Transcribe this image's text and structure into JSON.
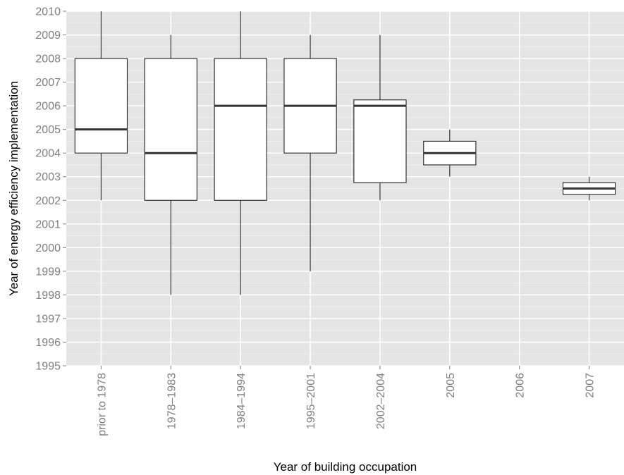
{
  "chart_data": {
    "type": "boxplot",
    "title": "",
    "xlabel": "Year of building occupation",
    "ylabel": "Year of energy efficiency implementation",
    "ylim": [
      1995,
      2010
    ],
    "y_ticks": [
      1995,
      1996,
      1997,
      1998,
      1999,
      2000,
      2001,
      2002,
      2003,
      2004,
      2005,
      2006,
      2007,
      2008,
      2009,
      2010
    ],
    "categories": [
      "prior to 1978",
      "1978–1983",
      "1984–1994",
      "1995–2001",
      "2002–2004",
      "2005",
      "2006",
      "2007"
    ],
    "boxes": [
      {
        "category": "prior to 1978",
        "min": 2002,
        "q1": 2004,
        "median": 2005,
        "q3": 2008,
        "max": 2010
      },
      {
        "category": "1978–1983",
        "min": 1998,
        "q1": 2002,
        "median": 2004,
        "q3": 2008,
        "max": 2009
      },
      {
        "category": "1984–1994",
        "min": 1998,
        "q1": 2002,
        "median": 2006,
        "q3": 2008,
        "max": 2010
      },
      {
        "category": "1995–2001",
        "min": 1999,
        "q1": 2004,
        "median": 2006,
        "q3": 2008,
        "max": 2009
      },
      {
        "category": "2002–2004",
        "min": 2002,
        "q1": 2002.75,
        "median": 2006,
        "q3": 2006.25,
        "max": 2009
      },
      {
        "category": "2005",
        "min": 2003,
        "q1": 2003.5,
        "median": 2004,
        "q3": 2004.5,
        "max": 2005
      },
      {
        "category": "2006",
        "min": null,
        "q1": null,
        "median": null,
        "q3": null,
        "max": null
      },
      {
        "category": "2007",
        "min": 2002,
        "q1": 2002.25,
        "median": 2002.5,
        "q3": 2002.75,
        "max": 2003
      }
    ],
    "grid": true,
    "legend": "none",
    "colors": {
      "panel_background": "#e5e5e5",
      "grid_major": "#ffffff",
      "grid_minor": "#f2f2f2",
      "box_fill": "#ffffff",
      "box_stroke": "#333333",
      "tick_label": "#7f7f7f"
    }
  }
}
